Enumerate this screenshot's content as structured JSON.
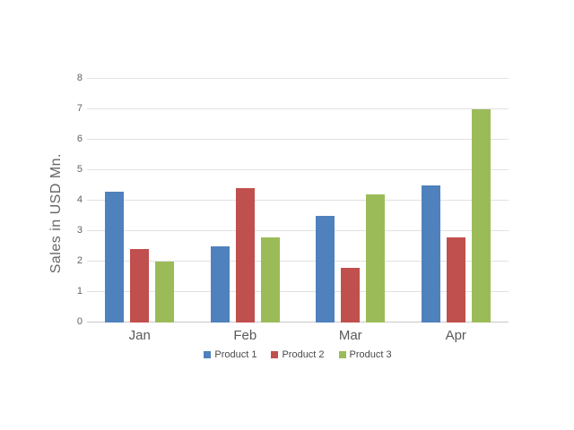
{
  "chart_data": {
    "type": "bar",
    "title": "",
    "categories": [
      "Jan",
      "Feb",
      "Mar",
      "Apr"
    ],
    "series": [
      {
        "name": "Product 1",
        "color": "#4F81BD",
        "values": [
          4.3,
          2.5,
          3.5,
          4.5
        ]
      },
      {
        "name": "Product 2",
        "color": "#C0504D",
        "values": [
          2.4,
          4.4,
          1.8,
          2.8
        ]
      },
      {
        "name": "Product 3",
        "color": "#9BBB59",
        "values": [
          2.0,
          2.8,
          4.2,
          7.0
        ]
      }
    ],
    "xlabel": "",
    "ylabel": "Sales in USD Mn.",
    "ylim": [
      0,
      8
    ],
    "yticks": [
      0,
      1,
      2,
      3,
      4,
      5,
      6,
      7,
      8
    ],
    "grid": true,
    "legend_position": "bottom-center"
  },
  "colors": {
    "background": "#FFFFFF",
    "gridline": "#E2E2E2",
    "axis_baseline": "#C9C9C9",
    "tick_text": "#636363",
    "axis_title_text": "#666666",
    "legend_text": "#4A4A4A"
  }
}
